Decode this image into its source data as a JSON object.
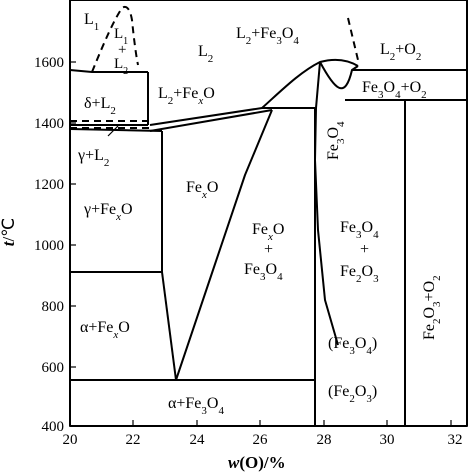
{
  "diagram": {
    "x_axis": {
      "title_var": "w",
      "title_rest": "(O)/%",
      "ticks": [
        "20",
        "22",
        "24",
        "26",
        "28",
        "30",
        "32"
      ]
    },
    "y_axis": {
      "title_var": "t",
      "title_rest": "/℃",
      "ticks": [
        "400",
        "600",
        "800",
        "1000",
        "1200",
        "1400",
        "1600"
      ]
    },
    "regions": {
      "l1": "L",
      "l1_sub": "1",
      "l1_plus_l2_a": "L",
      "l1_plus_l2_a_sub": "1",
      "l1_plus_l2_plus": "+",
      "l1_plus_l2_b": "L",
      "l1_plus_l2_b_sub": "2",
      "l2": "L",
      "l2_sub": "2",
      "l2_fe3o4_a": "L",
      "l2_fe3o4_a_sub": "2",
      "l2_fe3o4_b": "+Fe",
      "l2_fe3o4_b_sub": "3",
      "l2_fe3o4_c": "O",
      "l2_fe3o4_c_sub": "4",
      "l2_o2_a": "L",
      "l2_o2_a_sub": "2",
      "l2_o2_b": "+O",
      "l2_o2_b_sub": "2",
      "delta_l2_a": "δ+L",
      "delta_l2_a_sub": "2",
      "l2_fexo_a": "L",
      "l2_fexo_a_sub": "2",
      "l2_fexo_b": "+Fe",
      "l2_fexo_b_sub": "x",
      "l2_fexo_c": "O",
      "fe3o4_o2_a": "Fe",
      "fe3o4_o2_a_sub": "3",
      "fe3o4_o2_b": "O",
      "fe3o4_o2_b_sub": "4",
      "fe3o4_o2_c": "+O",
      "fe3o4_o2_c_sub": "2",
      "gamma_l2_a": "γ+L",
      "gamma_l2_a_sub": "2",
      "fexo_a": "Fe",
      "fexo_a_sub": "x",
      "fexo_b": "O",
      "gamma_fexo_a": "γ+Fe",
      "gamma_fexo_a_sub": "x",
      "gamma_fexo_b": "O",
      "fexo_fe3o4_1a": "Fe",
      "fexo_fe3o4_1a_sub": "x",
      "fexo_fe3o4_1b": "O",
      "fexo_fe3o4_plus": "+",
      "fexo_fe3o4_2a": "Fe",
      "fexo_fe3o4_2a_sub": "3",
      "fexo_fe3o4_2b": "O",
      "fexo_fe3o4_2b_sub": "4",
      "fe3o4_fe2o3_1a": "Fe",
      "fe3o4_fe2o3_1a_sub": "3",
      "fe3o4_fe2o3_1b": "O",
      "fe3o4_fe2o3_1b_sub": "4",
      "fe3o4_fe2o3_plus": "+",
      "fe3o4_fe2o3_2a": "Fe",
      "fe3o4_fe2o3_2a_sub": "2",
      "fe3o4_fe2o3_2b": "O",
      "fe3o4_fe2o3_2b_sub": "3",
      "alpha_fexo_a": "α+Fe",
      "alpha_fexo_a_sub": "x",
      "alpha_fexo_b": "O",
      "paren_fe3o4_a": "(Fe",
      "paren_fe3o4_a_sub": "3",
      "paren_fe3o4_b": "O",
      "paren_fe3o4_b_sub": "4",
      "paren_fe3o4_c": ")",
      "paren_fe2o3_a": "(Fe",
      "paren_fe2o3_a_sub": "2",
      "paren_fe2o3_b": "O",
      "paren_fe2o3_b_sub": "3",
      "paren_fe2o3_c": ")",
      "alpha_fe3o4_a": "α+Fe",
      "alpha_fe3o4_a_sub": "3",
      "alpha_fe3o4_b": "O",
      "alpha_fe3o4_b_sub": "4",
      "fe3o4_vertical_a": "Fe",
      "fe3o4_vertical_a_sub": "3",
      "fe3o4_vertical_b": "O",
      "fe3o4_vertical_b_sub": "4",
      "fe2o3_o2_vertical_a": "Fe",
      "fe2o3_o2_vertical_a_sub": "2",
      "fe2o3_o2_vertical_b": "O",
      "fe2o3_o2_vertical_b_sub": "3",
      "fe2o3_o2_vertical_c": "+O",
      "fe2o3_o2_vertical_c_sub": "2"
    }
  }
}
